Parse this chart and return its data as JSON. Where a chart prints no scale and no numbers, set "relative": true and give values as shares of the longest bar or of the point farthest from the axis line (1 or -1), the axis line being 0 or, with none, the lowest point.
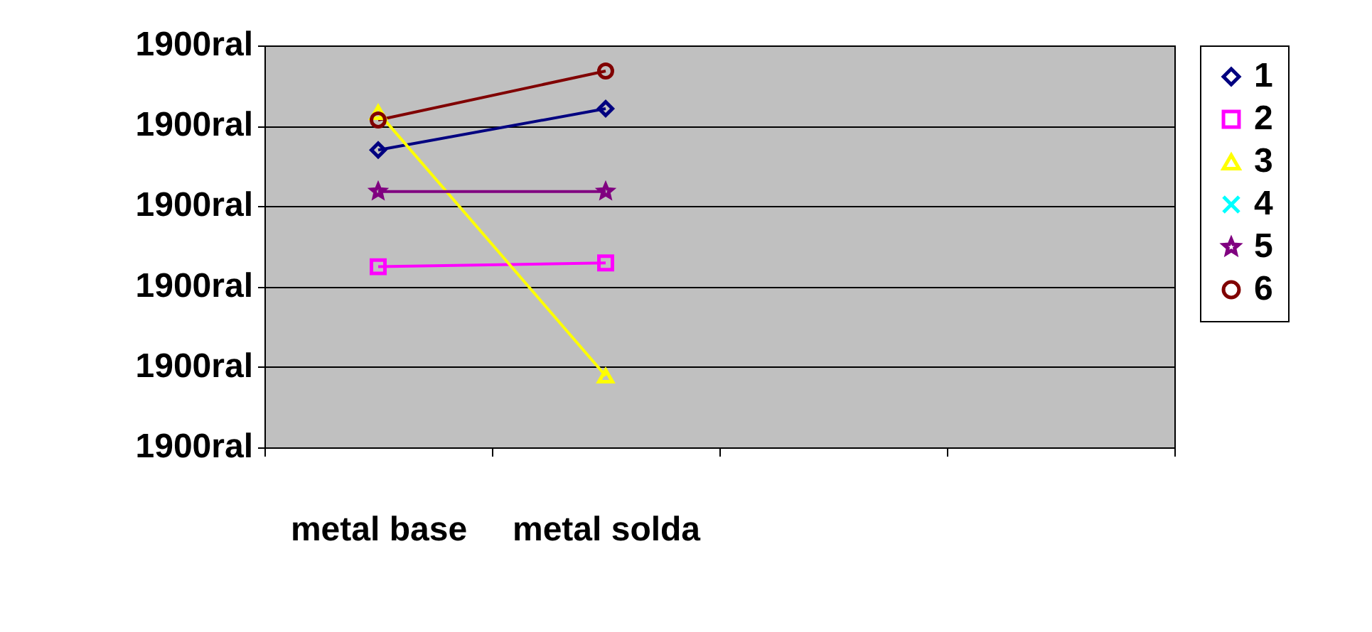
{
  "chart_data": {
    "type": "line",
    "relative": true,
    "categories": [
      "metal base",
      "metal solda",
      null,
      null
    ],
    "annotations": [
      "1900ral",
      "1900ral",
      "1900ral",
      "1900ral",
      "1900ral",
      "1900ral"
    ],
    "grid": "y",
    "legend": "right",
    "line_style": "solid",
    "series": [
      {
        "name": "1",
        "color": "#000080",
        "marker": "diamond",
        "values": [
          0.79,
          0.9,
          null,
          null
        ]
      },
      {
        "name": "2",
        "color": "#ff00ff",
        "marker": "square",
        "values": [
          0.48,
          0.49,
          null,
          null
        ]
      },
      {
        "name": "3",
        "color": "#ffff00",
        "marker": "triangle",
        "values": [
          0.89,
          0.19,
          null,
          null
        ]
      },
      {
        "name": "4",
        "color": "#00ffff",
        "marker": "cross",
        "values": [
          null,
          null,
          null,
          null
        ]
      },
      {
        "name": "5",
        "color": "#800080",
        "marker": "star",
        "values": [
          0.68,
          0.68,
          null,
          null
        ]
      },
      {
        "name": "6",
        "color": "#800000",
        "marker": "circle",
        "values": [
          0.87,
          1,
          null,
          null
        ]
      }
    ]
  }
}
